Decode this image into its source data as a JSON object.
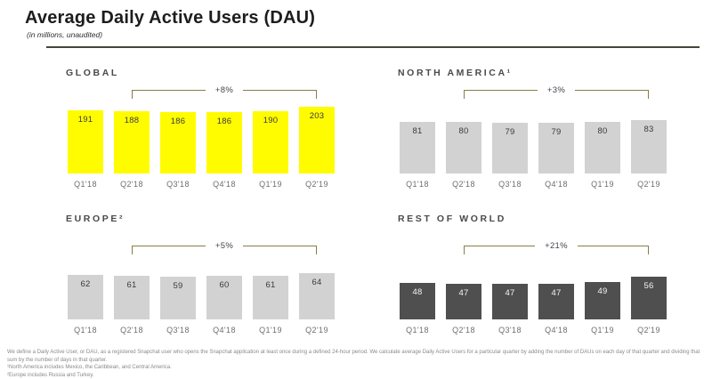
{
  "header": {
    "title": "Average Daily Active Users (DAU)",
    "subtitle": "(in millions, unaudited)"
  },
  "colors": {
    "brand_yellow": "#FFFC00",
    "bar_light_gray": "#D2D2D2",
    "bar_dark_gray": "#4F4F4F",
    "bracket_olive": "#8A7D45",
    "title_dark": "#1D1D1D"
  },
  "chart_data": [
    {
      "type": "bar",
      "title": "GLOBAL",
      "categories": [
        "Q1'18",
        "Q2'18",
        "Q3'18",
        "Q4'18",
        "Q1'19",
        "Q2'19"
      ],
      "values": [
        191,
        188,
        186,
        186,
        190,
        203
      ],
      "annotation": {
        "label": "+8%",
        "from": "Q2'18",
        "to": "Q2'19"
      },
      "bar_color": "#FFFC00",
      "value_label_color": "#3A3A3A",
      "ylim": [
        0,
        210
      ],
      "grid": false,
      "legend": false
    },
    {
      "type": "bar",
      "title": "NORTH AMERICA¹",
      "categories": [
        "Q1'18",
        "Q2'18",
        "Q3'18",
        "Q4'18",
        "Q1'19",
        "Q2'19"
      ],
      "values": [
        81,
        80,
        79,
        79,
        80,
        83
      ],
      "annotation": {
        "label": "+3%",
        "from": "Q2'18",
        "to": "Q2'19"
      },
      "bar_color": "#D2D2D2",
      "value_label_color": "#3A3A3A",
      "ylim": [
        0,
        110
      ],
      "grid": false,
      "legend": false
    },
    {
      "type": "bar",
      "title": "EUROPE²",
      "categories": [
        "Q1'18",
        "Q2'18",
        "Q3'18",
        "Q4'18",
        "Q1'19",
        "Q2'19"
      ],
      "values": [
        62,
        61,
        59,
        60,
        61,
        64
      ],
      "annotation": {
        "label": "+5%",
        "from": "Q2'18",
        "to": "Q2'19"
      },
      "bar_color": "#D2D2D2",
      "value_label_color": "#3A3A3A",
      "ylim": [
        0,
        80
      ],
      "grid": false,
      "legend": false
    },
    {
      "type": "bar",
      "title": "REST OF WORLD",
      "categories": [
        "Q1'18",
        "Q2'18",
        "Q3'18",
        "Q4'18",
        "Q1'19",
        "Q2'19"
      ],
      "values": [
        48,
        47,
        47,
        47,
        49,
        56
      ],
      "annotation": {
        "label": "+21%",
        "from": "Q2'18",
        "to": "Q2'19"
      },
      "bar_color": "#4F4F4F",
      "value_label_color": "#F5F5F5",
      "ylim": [
        0,
        66
      ],
      "grid": false,
      "legend": false
    }
  ],
  "footnotes": [
    "We define a Daily Active User, or DAU, as a registered Snapchat user who opens the Snapchat application at least once during a defined 24-hour period. We calculate average Daily Active Users for a particular quarter by adding the number of DAUs on each day of that quarter and dividing that sum by the number of days in that quarter.",
    "¹North America includes Mexico, the Caribbean, and Central America.",
    "²Europe includes Russia and Turkey."
  ]
}
